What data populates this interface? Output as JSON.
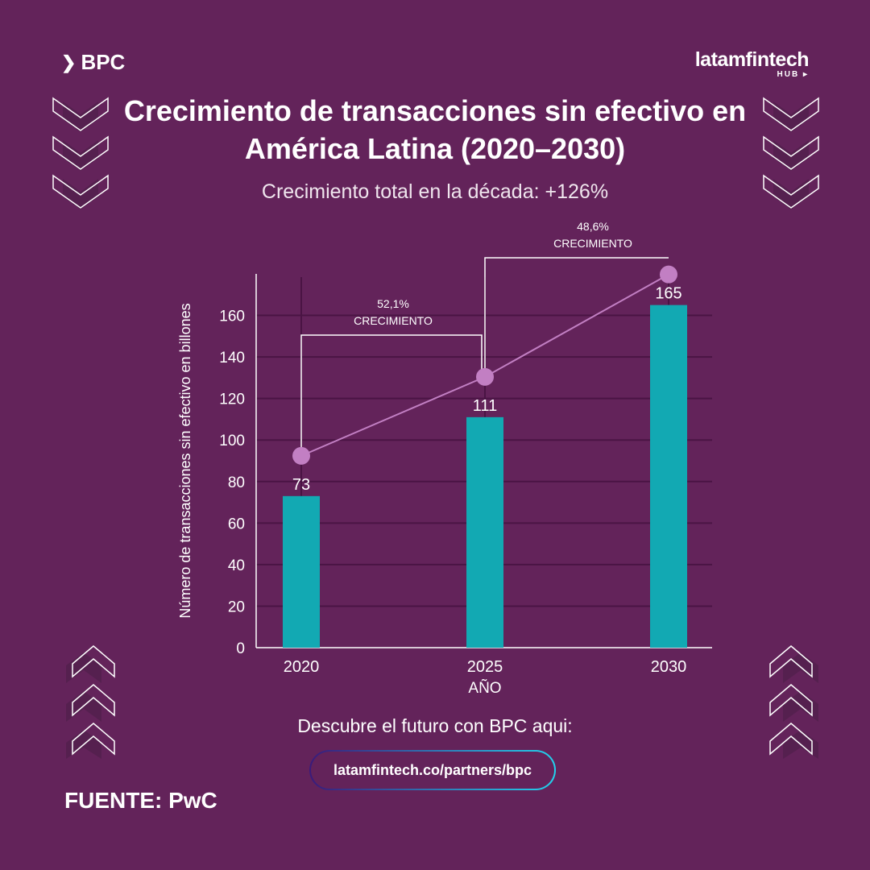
{
  "brand": {
    "left_logo": "BPC",
    "right_logo": "latamfintech",
    "right_logo_sub": "HUB"
  },
  "header": {
    "title": "Crecimiento de transacciones sin efectivo en América Latina (2020–2030)",
    "subtitle": "Crecimiento total en la década: +126%"
  },
  "colors": {
    "background": "#63235a",
    "bar": "#12a9b3",
    "line": "#c27fc3",
    "accent_gradient_start": "#3a1a7a",
    "accent_gradient_end": "#22d3ee"
  },
  "chart_data": {
    "type": "bar",
    "categories": [
      "2020",
      "2025",
      "2030"
    ],
    "values": [
      73,
      111,
      165
    ],
    "value_labels": [
      "73",
      "111",
      "165"
    ],
    "xlabel": "AÑO",
    "ylabel": "Número de transacciones sin efectivo en billones",
    "ylim": [
      0,
      180
    ],
    "yticks": [
      0,
      20,
      40,
      60,
      80,
      100,
      120,
      140,
      160
    ],
    "grid": true,
    "trend_line": true,
    "annotations": [
      {
        "from": "2020",
        "to": "2025",
        "value": "52,1%",
        "label": "CRECIMIENTO"
      },
      {
        "from": "2025",
        "to": "2030",
        "value": "48,6%",
        "label": "CRECIMIENTO"
      }
    ]
  },
  "footer": {
    "cta": "Descubre el futuro con BPC aqui:",
    "link": "latamfintech.co/partners/bpc",
    "source": "FUENTE: PwC"
  }
}
